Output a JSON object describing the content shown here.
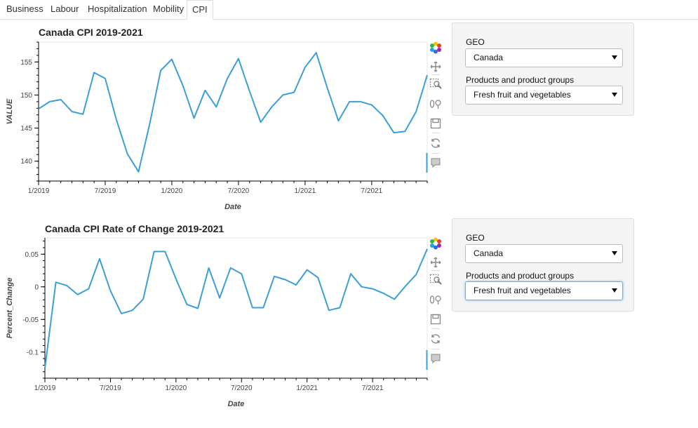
{
  "tabs": [
    {
      "label": "Business"
    },
    {
      "label": "Labour"
    },
    {
      "label": "Hospitalization"
    },
    {
      "label": "Mobility"
    },
    {
      "label": "CPI",
      "active": true
    }
  ],
  "colors": {
    "line": "#3a9fd8",
    "accent_focus": "#66afe9"
  },
  "charts": [
    {
      "title": "Canada CPI 2019-2021",
      "controls": {
        "geo_label": "GEO",
        "geo_value": "Canada",
        "product_label": "Products and product groups",
        "product_value": "Fresh fruit and vegetables"
      }
    },
    {
      "title": "Canada CPI Rate of Change 2019-2021",
      "controls": {
        "geo_label": "GEO",
        "geo_value": "Canada",
        "product_label": "Products and product groups",
        "product_value": "Fresh fruit and vegetables"
      }
    }
  ],
  "toolbar_icons": [
    "bokeh-logo-icon",
    "pan-icon",
    "box-zoom-icon",
    "wheel-zoom-icon",
    "save-icon",
    "reset-icon",
    "hover-icon"
  ],
  "chart_data": [
    {
      "type": "line",
      "title": "Canada CPI 2019-2021",
      "xlabel": "Date",
      "ylabel": "VALUE",
      "x_ticks": [
        "1/2019",
        "7/2019",
        "1/2020",
        "7/2020",
        "1/2021",
        "7/2021"
      ],
      "y_ticks": [
        140,
        145,
        150,
        155
      ],
      "ylim": [
        137,
        158
      ],
      "x": [
        "2019-01",
        "2019-02",
        "2019-03",
        "2019-04",
        "2019-05",
        "2019-06",
        "2019-07",
        "2019-08",
        "2019-09",
        "2019-10",
        "2019-11",
        "2019-12",
        "2020-01",
        "2020-02",
        "2020-03",
        "2020-04",
        "2020-05",
        "2020-06",
        "2020-07",
        "2020-08",
        "2020-09",
        "2020-10",
        "2020-11",
        "2020-12",
        "2021-01",
        "2021-02",
        "2021-03",
        "2021-04",
        "2021-05",
        "2021-06",
        "2021-07",
        "2021-08",
        "2021-09",
        "2021-10",
        "2021-11",
        "2021-12"
      ],
      "series": [
        {
          "values": [
            147.9,
            149.0,
            149.3,
            147.5,
            147.1,
            153.4,
            152.5,
            146.3,
            141.1,
            138.4,
            145.6,
            153.7,
            155.4,
            151.4,
            146.5,
            150.7,
            148.2,
            152.5,
            155.5,
            150.6,
            145.9,
            148.2,
            150.0,
            150.4,
            154.2,
            156.4,
            151.1,
            146.1,
            149.0,
            149.0,
            148.5,
            146.9,
            144.3,
            144.5,
            147.5,
            153.0
          ]
        }
      ]
    },
    {
      "type": "line",
      "title": "Canada CPI Rate of Change 2019-2021",
      "xlabel": "Date",
      "ylabel": "Percent_Change",
      "x_ticks": [
        "1/2019",
        "7/2019",
        "1/2020",
        "7/2020",
        "1/2021",
        "7/2021"
      ],
      "y_ticks": [
        -0.1,
        -0.05,
        0,
        0.05
      ],
      "ylim": [
        -0.14,
        0.075
      ],
      "x": [
        "2019-01",
        "2019-02",
        "2019-03",
        "2019-04",
        "2019-05",
        "2019-06",
        "2019-07",
        "2019-08",
        "2019-09",
        "2019-10",
        "2019-11",
        "2019-12",
        "2020-01",
        "2020-02",
        "2020-03",
        "2020-04",
        "2020-05",
        "2020-06",
        "2020-07",
        "2020-08",
        "2020-09",
        "2020-10",
        "2020-11",
        "2020-12",
        "2021-01",
        "2021-02",
        "2021-03",
        "2021-04",
        "2021-05",
        "2021-06",
        "2021-07",
        "2021-08",
        "2021-09",
        "2021-10",
        "2021-11",
        "2021-12"
      ],
      "series": [
        {
          "values": [
            -0.125,
            0.007,
            0.002,
            -0.012,
            -0.003,
            0.043,
            -0.006,
            -0.041,
            -0.036,
            -0.019,
            0.054,
            0.054,
            0.012,
            -0.027,
            -0.033,
            0.029,
            -0.017,
            0.029,
            0.02,
            -0.032,
            -0.032,
            0.016,
            0.011,
            0.003,
            0.026,
            0.014,
            -0.036,
            -0.032,
            0.02,
            0.0,
            -0.003,
            -0.01,
            -0.019,
            0.001,
            0.019,
            0.058
          ]
        }
      ]
    }
  ]
}
